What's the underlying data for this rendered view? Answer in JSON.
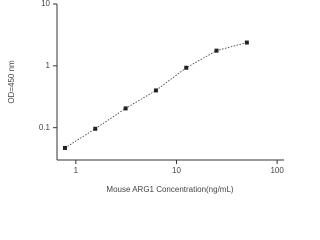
{
  "chart_data": {
    "type": "scatter",
    "x_label": "Mouse ARG1 Concentration(ng/mL)",
    "y_label": "OD=450 nm",
    "x": [
      0.78,
      1.56,
      3.125,
      6.25,
      12.5,
      25,
      50
    ],
    "values": [
      0.047,
      0.096,
      0.205,
      0.4,
      0.93,
      1.76,
      2.38
    ],
    "color": "#222222",
    "xlog": true,
    "ylog": true,
    "xlim": [
      0.65,
      117
    ],
    "xticks": [
      1,
      10,
      100
    ],
    "ylim": [
      0.03,
      10
    ],
    "yticks": [
      0.1,
      1,
      10
    ],
    "grid": false
  }
}
